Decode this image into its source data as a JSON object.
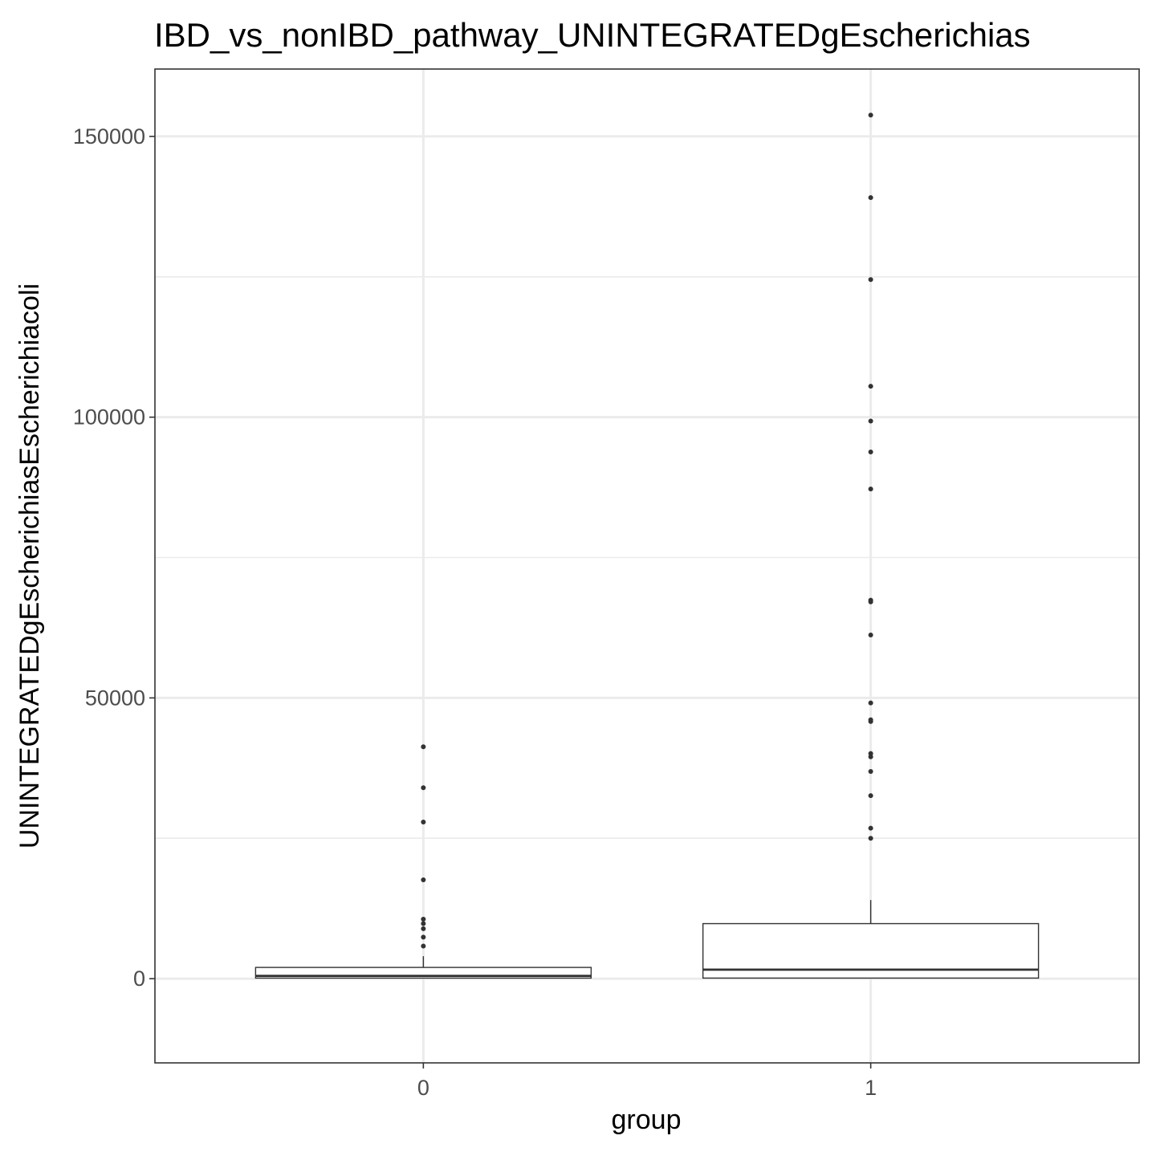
{
  "chart_data": {
    "type": "box",
    "title": "IBD_vs_nonIBD_pathway_UNINTEGRATEDgEscherichias",
    "xlabel": "group",
    "ylabel": "UNINTEGRATEDgEscherichiasEscherichiacoli",
    "categories": [
      "0",
      "1"
    ],
    "ylim": [
      -15000,
      162000
    ],
    "y_ticks": [
      0,
      50000,
      100000,
      150000
    ],
    "y_tick_labels": [
      "0",
      "50000",
      "100000",
      "150000"
    ],
    "y_minor_ticks": [
      25000,
      75000,
      125000
    ],
    "grid": true,
    "theme": "bw",
    "boxes": [
      {
        "category": "0",
        "whisker_low": 0,
        "q1": 100,
        "median": 500,
        "q3": 2000,
        "whisker_high": 4000,
        "outliers": [
          41300,
          34000,
          27900,
          17600,
          10600,
          9800,
          8900,
          7400,
          5800
        ]
      },
      {
        "category": "1",
        "whisker_low": 0,
        "q1": 100,
        "median": 1600,
        "q3": 9800,
        "whisker_high": 14000,
        "outliers": [
          153800,
          139100,
          124500,
          105500,
          99300,
          93800,
          87200,
          67400,
          67100,
          61200,
          49100,
          46100,
          45800,
          40100,
          39500,
          36900,
          32600,
          26800,
          25000
        ]
      }
    ]
  }
}
